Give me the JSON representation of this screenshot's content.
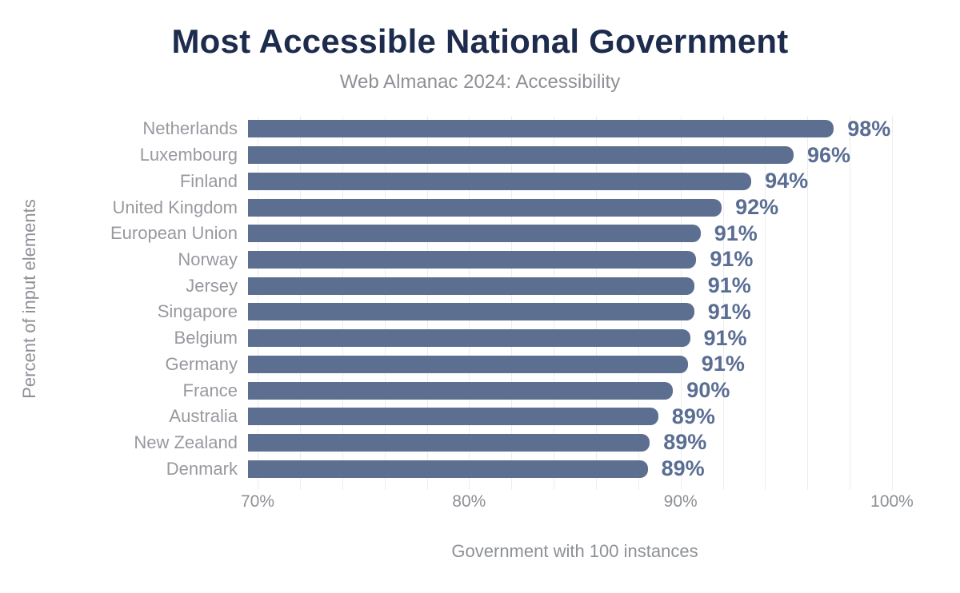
{
  "chart_data": {
    "type": "bar",
    "orientation": "horizontal",
    "title": "Most Accessible National Government",
    "subtitle": "Web Almanac 2024: Accessibility",
    "xlabel": "Government with 100 instances",
    "ylabel": "Percent of input elements",
    "xlim": [
      70,
      100
    ],
    "grid_step": 2,
    "grid_on": true,
    "legend": "none",
    "xticks": [
      {
        "value": 70,
        "label": "70%"
      },
      {
        "value": 80,
        "label": "80%"
      },
      {
        "value": 90,
        "label": "90%"
      },
      {
        "value": 100,
        "label": "100%"
      }
    ],
    "categories": [
      "Netherlands",
      "Luxembourg",
      "Finland",
      "United Kingdom",
      "European Union",
      "Norway",
      "Jersey",
      "Singapore",
      "Belgium",
      "Germany",
      "France",
      "Australia",
      "New Zealand",
      "Denmark"
    ],
    "values": [
      97.7,
      95.8,
      93.8,
      92.4,
      91.4,
      91.2,
      91.1,
      91.1,
      90.9,
      90.8,
      90.1,
      89.4,
      89.0,
      88.9
    ],
    "display_labels": [
      "98%",
      "96%",
      "94%",
      "92%",
      "91%",
      "91%",
      "91%",
      "91%",
      "91%",
      "91%",
      "90%",
      "89%",
      "89%",
      "89%"
    ],
    "colors": {
      "bar": "#5d6f90",
      "value_label": "#5a6d93",
      "title": "#1d2b4d",
      "category_label": "#97999f",
      "axis_text": "#8d9095",
      "gridline": "#ededef",
      "background": "#ffffff"
    }
  }
}
